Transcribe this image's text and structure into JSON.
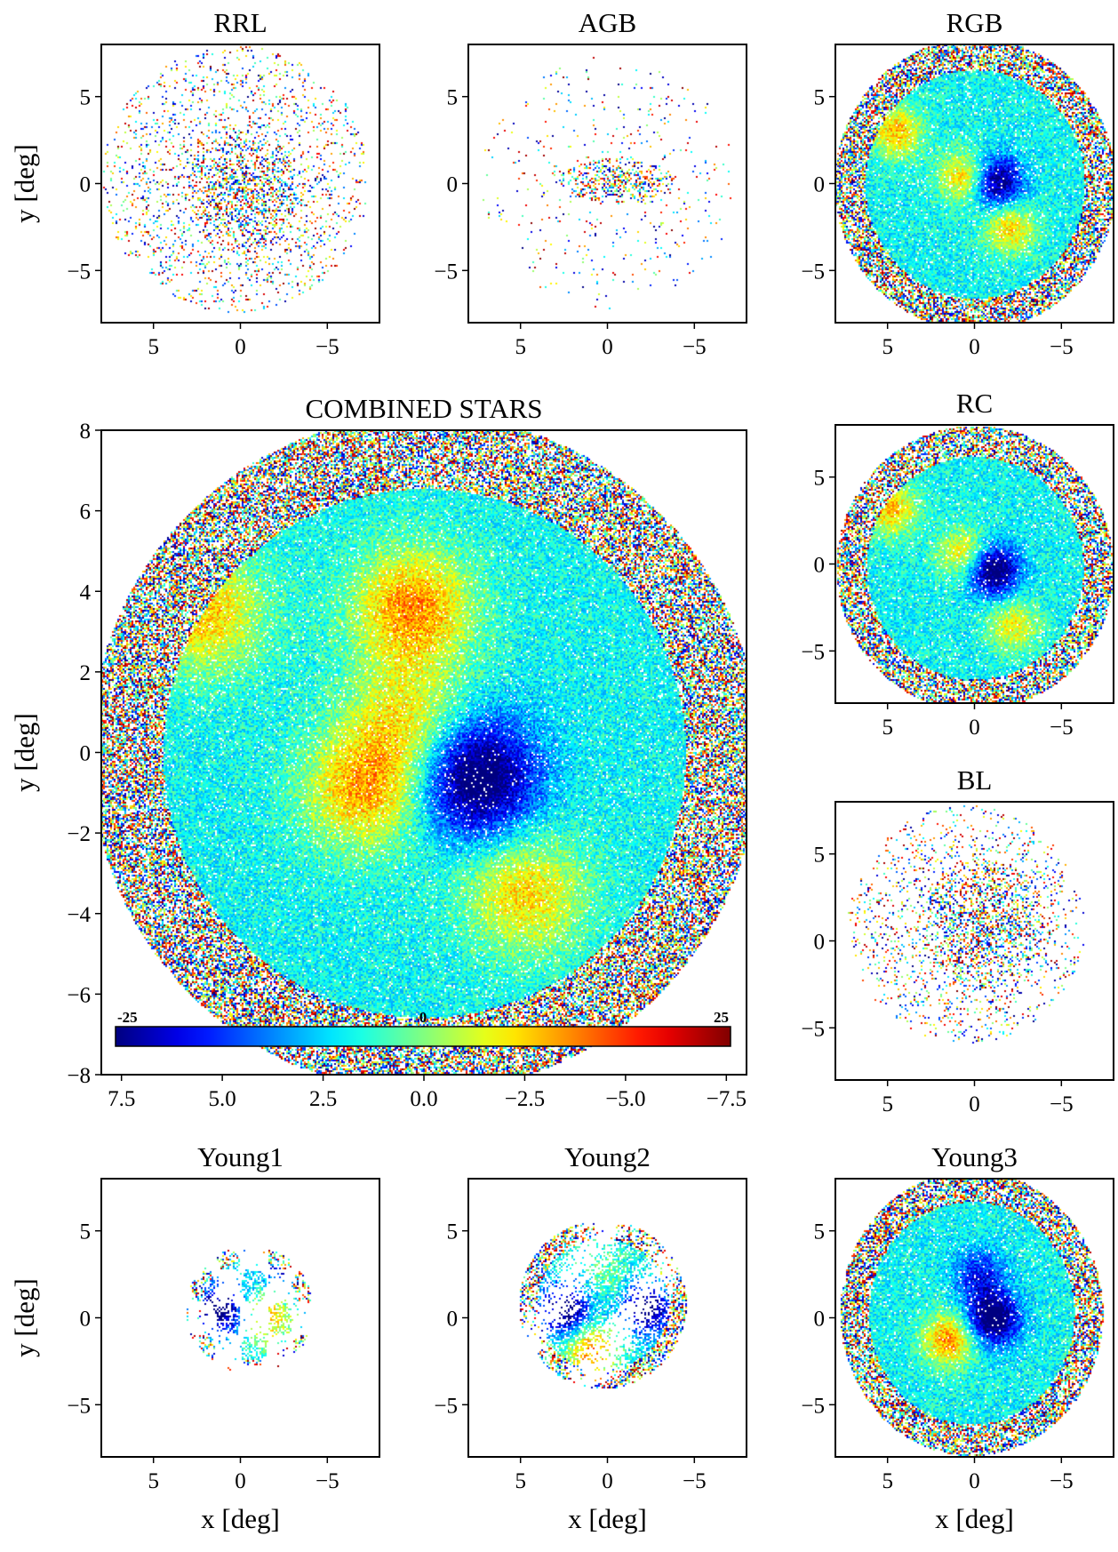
{
  "figure": {
    "axis_labels": {
      "x": "x [deg]",
      "y": "y [deg]"
    },
    "colormap": "jet",
    "colorbar": {
      "min_label": "-25",
      "mid_label": "0",
      "max_label": "25",
      "min": -25,
      "max": 25
    }
  },
  "chart_data": [
    {
      "type": "heatmap",
      "title": "RRL",
      "xlim": [
        8,
        -8
      ],
      "ylim": [
        -8,
        8
      ],
      "xticks": [
        5,
        0,
        -5
      ],
      "yticks": [
        5,
        0,
        -5
      ],
      "ylabel": "y [deg]",
      "xlabel": "",
      "density": "sparse",
      "extent": {
        "cx": 0.3,
        "cy": 0.3,
        "r": 7.3
      },
      "dense_core": {
        "cx": -0.2,
        "cy": -0.5,
        "r": 3.5
      },
      "features": []
    },
    {
      "type": "heatmap",
      "title": "AGB",
      "xlim": [
        8,
        -8
      ],
      "ylim": [
        -8,
        8
      ],
      "xticks": [
        5,
        0,
        -5
      ],
      "yticks": [
        5,
        0,
        -5
      ],
      "ylabel": "",
      "xlabel": "",
      "density": "very-sparse",
      "extent": {
        "cx": 0,
        "cy": 0,
        "r": 7.0
      },
      "dense_core": {
        "cx": -0.5,
        "cy": 0.2,
        "rx": 3.3,
        "ry": 1.3
      },
      "features": [
        {
          "x": 1.3,
          "y": -0.4,
          "value": 22
        },
        {
          "x": -1.1,
          "y": 0.4,
          "value": -20
        }
      ]
    },
    {
      "type": "heatmap",
      "title": "RGB",
      "xlim": [
        8,
        -8
      ],
      "ylim": [
        -8,
        8
      ],
      "xticks": [
        5,
        0,
        -5
      ],
      "yticks": [
        5,
        0,
        -5
      ],
      "ylabel": "",
      "xlabel": "",
      "density": "dense",
      "extent": {
        "cx": 0,
        "cy": 0,
        "rx": 7.7,
        "ry": 8.0
      },
      "features": [
        {
          "x": 4.5,
          "y": 3.0,
          "value": 15
        },
        {
          "x": -2.0,
          "y": -2.5,
          "value": 14
        },
        {
          "x": -1.2,
          "y": 0.1,
          "value": -22
        },
        {
          "x": 0.6,
          "y": 0.4,
          "value": 16
        }
      ]
    },
    {
      "type": "heatmap",
      "title": "COMBINED STARS",
      "xlim": [
        8,
        -8
      ],
      "ylim": [
        -8,
        8
      ],
      "xticks": [
        7.5,
        5.0,
        2.5,
        0.0,
        -2.5,
        -5.0,
        -7.5
      ],
      "yticks": [
        8,
        6,
        4,
        2,
        0,
        -2,
        -4,
        -6,
        -8
      ],
      "ylabel": "y [deg]",
      "xlabel": "",
      "colorbar": true,
      "density": "dense",
      "extent": {
        "cx": 0,
        "cy": 0,
        "rx": 7.9,
        "ry": 8.0
      },
      "features": [
        {
          "x": 5.5,
          "y": 3.5,
          "value": 15
        },
        {
          "x": -2.5,
          "y": -3.5,
          "value": 14
        },
        {
          "x": -1.3,
          "y": -0.6,
          "value": -24
        },
        {
          "x": 1.5,
          "y": -0.9,
          "value": 16
        },
        {
          "x": 0.4,
          "y": 0.8,
          "value": 12
        },
        {
          "x": 0.3,
          "y": 3.6,
          "value": 18
        }
      ]
    },
    {
      "type": "heatmap",
      "title": "RC",
      "xlim": [
        8,
        -8
      ],
      "ylim": [
        -8,
        8
      ],
      "xticks": [
        5,
        0,
        -5
      ],
      "yticks": [
        5,
        0,
        -5
      ],
      "ylabel": "",
      "xlabel": "",
      "density": "dense",
      "extent": {
        "cx": 0,
        "cy": -0.2,
        "rx": 7.6,
        "ry": 7.8
      },
      "features": [
        {
          "x": 4.8,
          "y": 3.2,
          "value": 15
        },
        {
          "x": -2.2,
          "y": -3.5,
          "value": 12
        },
        {
          "x": -1.0,
          "y": -0.3,
          "value": -24
        },
        {
          "x": 0.6,
          "y": 0.6,
          "value": 14
        }
      ]
    },
    {
      "type": "heatmap",
      "title": "BL",
      "xlim": [
        8,
        -8
      ],
      "ylim": [
        -8,
        8
      ],
      "xticks": [
        5,
        0,
        -5
      ],
      "yticks": [
        5,
        0,
        -5
      ],
      "ylabel": "",
      "xlabel": "",
      "density": "sparse",
      "extent": {
        "cx": 0.5,
        "cy": 1.0,
        "r": 6.5
      },
      "dense_core": {
        "cx": -0.5,
        "cy": 1.0,
        "r": 3.8
      },
      "features": [
        {
          "x": -1.2,
          "y": 0,
          "value": -24
        },
        {
          "x": 1.0,
          "y": -0.8,
          "value": 14
        }
      ]
    },
    {
      "type": "heatmap",
      "title": "Young1",
      "xlim": [
        8,
        -8
      ],
      "ylim": [
        -8,
        8
      ],
      "xticks": [
        5,
        0,
        -5
      ],
      "yticks": [
        5,
        0,
        -5
      ],
      "ylabel": "y [deg]",
      "xlabel": "x [deg]",
      "density": "patchy",
      "extent": {
        "cx": -0.5,
        "cy": 0.5,
        "r": 3.5
      },
      "features": [
        {
          "x": 1.2,
          "y": 0.5,
          "value": -22
        },
        {
          "x": -1.5,
          "y": 0,
          "value": 15
        },
        {
          "x": -2.5,
          "y": 3.2,
          "value": -15
        }
      ]
    },
    {
      "type": "heatmap",
      "title": "Young2",
      "xlim": [
        8,
        -8
      ],
      "ylim": [
        -8,
        8
      ],
      "xticks": [
        5,
        0,
        -5
      ],
      "yticks": [
        5,
        0,
        -5
      ],
      "ylabel": "",
      "xlabel": "x [deg]",
      "density": "clumpy",
      "extent": {
        "cx": 0.3,
        "cy": 0.8,
        "r": 4.6
      },
      "features": [
        {
          "x": 2.5,
          "y": 0.5,
          "value": -22
        },
        {
          "x": 1.0,
          "y": -1.8,
          "value": 18
        },
        {
          "x": -2.2,
          "y": 0.5,
          "value": -20
        },
        {
          "x": 0.3,
          "y": 2.5,
          "value": 5
        }
      ]
    },
    {
      "type": "heatmap",
      "title": "Young3",
      "xlim": [
        8,
        -8
      ],
      "ylim": [
        -8,
        8
      ],
      "xticks": [
        5,
        0,
        -5
      ],
      "yticks": [
        5,
        0,
        -5
      ],
      "ylabel": "",
      "xlabel": "x [deg]",
      "density": "dense",
      "extent": {
        "cx": 0.2,
        "cy": 0.3,
        "rx": 7.2,
        "ry": 7.8
      },
      "features": [
        {
          "x": -1.0,
          "y": 0,
          "value": -24
        },
        {
          "x": 1.5,
          "y": -1.2,
          "value": 18
        },
        {
          "x": -0.3,
          "y": 2.5,
          "value": -12
        }
      ]
    }
  ]
}
